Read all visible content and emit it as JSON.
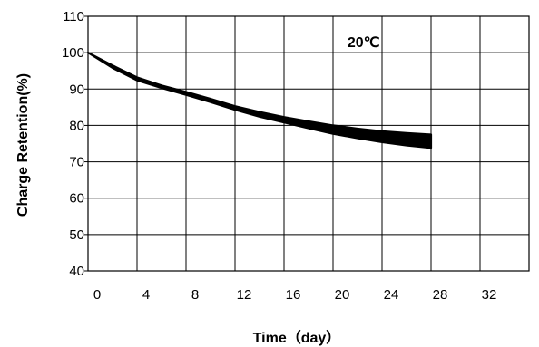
{
  "chart_data": {
    "type": "area",
    "title": "",
    "xlabel": "Time（day）",
    "ylabel": "Charge Retention(%)",
    "xlim": [
      0,
      36
    ],
    "ylim": [
      40,
      110
    ],
    "x_ticks": [
      0,
      4,
      8,
      12,
      16,
      20,
      24,
      28,
      32
    ],
    "y_ticks": [
      40,
      50,
      60,
      70,
      80,
      90,
      100,
      110
    ],
    "grid": true,
    "annotation": {
      "text": "20℃",
      "x": 22.5,
      "y": 103
    },
    "series": [
      {
        "x": [
          0,
          2,
          4,
          6,
          8,
          10,
          12,
          14,
          16,
          18,
          20,
          22,
          24,
          26,
          28
        ],
        "upper": [
          100,
          96.5,
          93.2,
          91.0,
          89.2,
          87.3,
          85.3,
          83.7,
          82.3,
          81.1,
          80.0,
          79.1,
          78.4,
          77.9,
          77.5
        ],
        "lower": [
          100,
          95.8,
          92.4,
          90.3,
          88.4,
          86.4,
          84.3,
          82.4,
          80.8,
          79.2,
          77.7,
          76.5,
          75.4,
          74.5,
          73.8
        ],
        "color": "#000000"
      }
    ]
  }
}
